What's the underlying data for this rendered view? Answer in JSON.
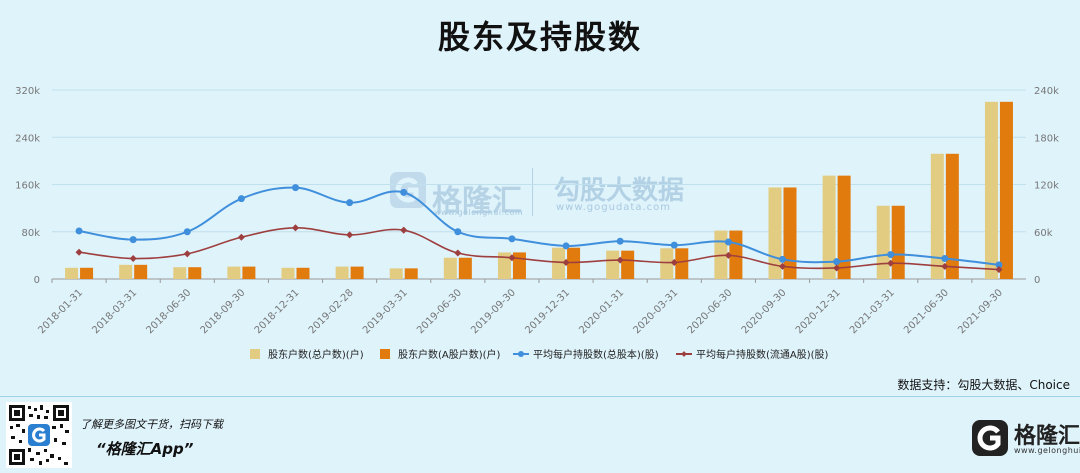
{
  "page": {
    "title": "股东及持股数",
    "source": "数据支持：勾股大数据、Choice"
  },
  "watermark": {
    "brand": "格隆汇",
    "brand_url": "www.gelonghui.com",
    "service": "勾股大数据",
    "service_url": "www.gogudata.com"
  },
  "footer": {
    "promo": "了解更多图文干货，扫码下载",
    "app_name": "“格隆汇App”",
    "brand_name": "格隆汇",
    "brand_url": "www.gelonghui.com"
  },
  "colors": {
    "bar_total": "#e2cc82",
    "bar_a": "#e27b0e",
    "line_total": "#3f8fdc",
    "line_a": "#9e3f3f",
    "axis_text": "#777777",
    "grid": "#bfe0ec"
  },
  "chart_data": {
    "type": "bar",
    "categories": [
      "2018-01-31",
      "2018-03-31",
      "2018-06-30",
      "2018-09-30",
      "2018-12-31",
      "2019-02-28",
      "2019-03-31",
      "2019-06-30",
      "2019-09-30",
      "2019-12-31",
      "2020-01-31",
      "2020-03-31",
      "2020-06-30",
      "2020-09-30",
      "2020-12-31",
      "2021-03-31",
      "2021-06-30",
      "2021-09-30"
    ],
    "left_axis": {
      "ticks": [
        "0",
        "80k",
        "160k",
        "240k",
        "320k"
      ],
      "min": 0,
      "max": 320000
    },
    "right_axis": {
      "ticks": [
        "0",
        "60k",
        "120k",
        "180k",
        "240k"
      ],
      "min": 0,
      "max": 240000
    },
    "series": [
      {
        "name": "股东户数(总户数)(户)",
        "kind": "bar",
        "axis": "left",
        "values": [
          19000,
          24000,
          20000,
          21000,
          19000,
          21000,
          18000,
          36000,
          45000,
          53000,
          48000,
          52000,
          82000,
          155000,
          175000,
          124000,
          212000,
          300000
        ]
      },
      {
        "name": "股东户数(A股户数)(户)",
        "kind": "bar",
        "axis": "left",
        "values": [
          19000,
          24000,
          20000,
          21000,
          19000,
          21000,
          18000,
          36000,
          45000,
          53000,
          48000,
          52000,
          82000,
          155000,
          175000,
          124000,
          212000,
          300000
        ]
      },
      {
        "name": "平均每户持股数(总股本)(股)",
        "kind": "line",
        "axis": "right",
        "values": [
          61000,
          50000,
          60000,
          102000,
          116000,
          97000,
          110000,
          60000,
          51000,
          42000,
          48000,
          43000,
          47000,
          25000,
          22000,
          31000,
          26000,
          18000
        ]
      },
      {
        "name": "平均每户持股数(流通A股)(股)",
        "kind": "line",
        "axis": "right",
        "values": [
          34000,
          26000,
          32000,
          53000,
          65000,
          56000,
          62000,
          33000,
          27000,
          21000,
          24000,
          21000,
          30000,
          16000,
          14000,
          20000,
          16000,
          12000
        ]
      }
    ],
    "legend_position": "bottom"
  }
}
